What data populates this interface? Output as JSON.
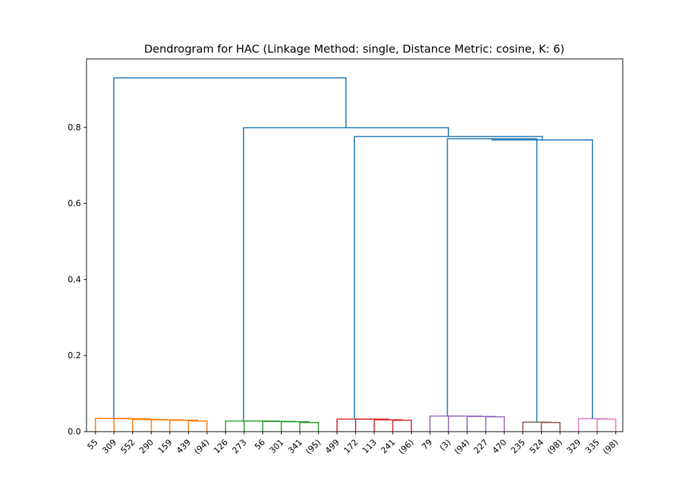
{
  "chart_data": {
    "type": "dendrogram",
    "title": "Dendrogram for HAC (Linkage Method: single, Distance Metric: cosine, K: 6)",
    "xlabel": "",
    "ylabel": "",
    "ylim": [
      0,
      0.98
    ],
    "yticks": [
      0.0,
      0.2,
      0.4,
      0.6,
      0.8
    ],
    "ytick_labels": [
      "0.0",
      "0.2",
      "0.4",
      "0.6",
      "0.8"
    ],
    "grid": false,
    "leaf_labels": [
      "55",
      "309",
      "552",
      "290",
      "159",
      "439",
      "(94)",
      "126",
      "273",
      "56",
      "301",
      "341",
      "(95)",
      "499",
      "172",
      "113",
      "241",
      "(96)",
      "79",
      "(3)",
      "(94)",
      "227",
      "470",
      "235",
      "524",
      "(98)",
      "329",
      "335",
      "(98)"
    ],
    "clusters": [
      {
        "leaf_range": [
          0,
          6
        ],
        "color": "#ff7f0e",
        "merge_heights": [
          0.028,
          0.03,
          0.031,
          0.032,
          0.034,
          0.035
        ]
      },
      {
        "leaf_range": [
          7,
          12
        ],
        "color": "#2ca02c",
        "merge_heights": [
          0.024,
          0.026,
          0.027,
          0.028,
          0.028
        ]
      },
      {
        "leaf_range": [
          13,
          17
        ],
        "color": "#d62728",
        "merge_heights": [
          0.03,
          0.031,
          0.033,
          0.033
        ]
      },
      {
        "leaf_range": [
          18,
          22
        ],
        "color": "#9467bd",
        "merge_heights": [
          0.039,
          0.04,
          0.041,
          0.041
        ]
      },
      {
        "leaf_range": [
          23,
          25
        ],
        "color": "#8c564b",
        "merge_heights": [
          0.024,
          0.025
        ]
      },
      {
        "leaf_range": [
          26,
          28
        ],
        "color": "#e377c2",
        "merge_heights": [
          0.033,
          0.034
        ]
      }
    ],
    "link_color": "#1f77b4",
    "top_merges": [
      {
        "clusters": [
          "purple",
          "brown"
        ],
        "height": 0.77
      },
      {
        "clusters": [
          "purple+brown",
          "pink"
        ],
        "height": 0.767
      },
      {
        "clusters": [
          "red",
          "purple+brown+pink"
        ],
        "height": 0.776
      },
      {
        "clusters": [
          "green",
          "red+purple+brown+pink"
        ],
        "height": 0.799
      },
      {
        "clusters": [
          "orange",
          "rest"
        ],
        "height": 0.93
      }
    ]
  }
}
